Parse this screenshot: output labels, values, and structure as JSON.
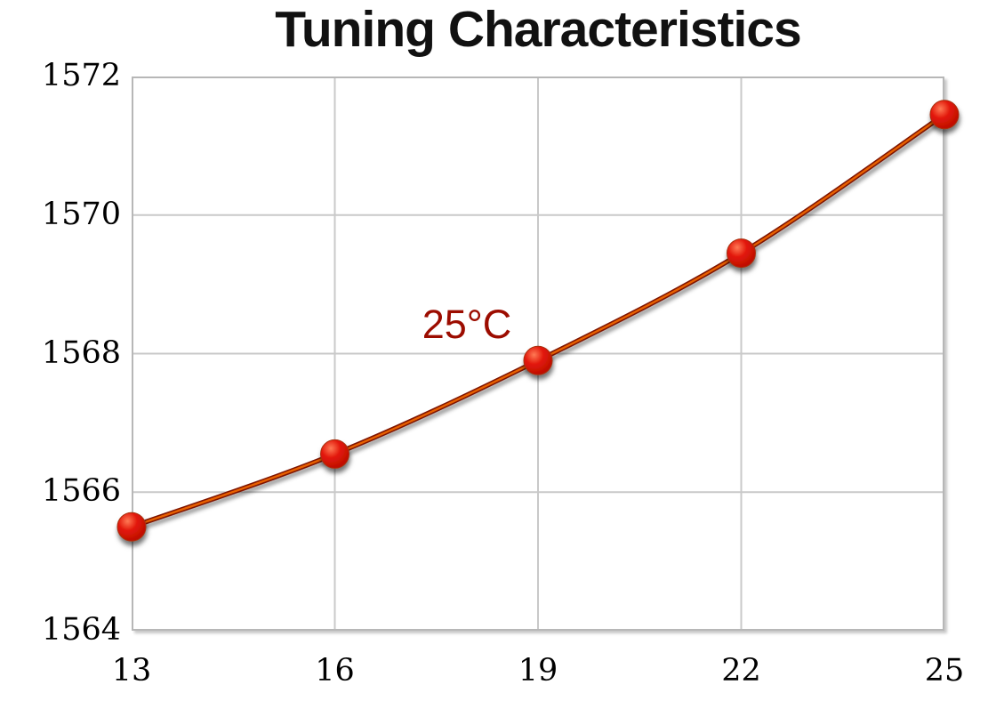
{
  "chart_data": {
    "type": "line",
    "title": "Tuning Characteristics",
    "x": [
      13,
      16,
      19,
      22,
      25
    ],
    "series": [
      {
        "name": "25°C",
        "values": [
          1565.5,
          1566.55,
          1567.9,
          1569.45,
          1571.45
        ]
      }
    ],
    "xlabel": "",
    "ylabel": "",
    "xlim": [
      13,
      25
    ],
    "ylim": [
      1564,
      1572
    ],
    "x_ticks": [
      "13",
      "16",
      "19",
      "22",
      "25"
    ],
    "y_ticks": [
      "1564",
      "1566",
      "1568",
      "1570",
      "1572"
    ],
    "grid": true,
    "legend": "none",
    "annotation": {
      "text": "25°C",
      "x": 17.95,
      "y": 1568.42
    },
    "colors": {
      "title": "#111111",
      "tick": "#000000",
      "annotation": "#9c0c00",
      "grid": "#c9c9c9",
      "border": "#b7b7b7",
      "line_edge": "#7e1200",
      "line_core": "#e86000",
      "marker_fill": "#e2170a",
      "marker_highlight": "#ff7a55",
      "marker_dark": "#b50d00",
      "marker_rim": "#a83010",
      "background": "#ffffff"
    }
  }
}
